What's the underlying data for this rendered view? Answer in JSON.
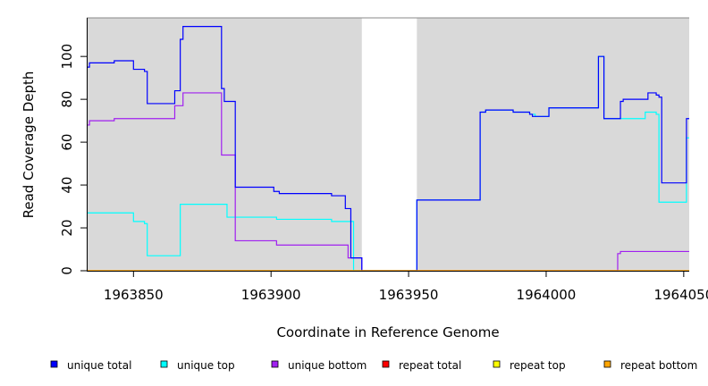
{
  "chart_data": {
    "type": "line",
    "title": "",
    "xlabel": "Coordinate in Reference Genome",
    "ylabel": "Read Coverage Depth",
    "xlim": [
      1963833,
      1964052
    ],
    "ylim": [
      0,
      118
    ],
    "x_ticks": [
      1963850,
      1963900,
      1963950,
      1964000,
      1964050
    ],
    "x_tick_labels": [
      "1963850",
      "1963900",
      "1963950",
      "1964000",
      "1964050"
    ],
    "y_ticks": [
      0,
      20,
      40,
      60,
      80,
      100
    ],
    "y_tick_labels": [
      "0",
      "20",
      "40",
      "60",
      "80",
      "100"
    ],
    "background_color": "#d9d9d9",
    "gap_regions": [
      [
        1963933,
        1963953
      ]
    ],
    "legend_position": "bottom",
    "series": [
      {
        "name": "unique top",
        "color": "#00ffff",
        "step_x": [
          1963833,
          1963850,
          1963854,
          1963855,
          1963866,
          1963867,
          1963882,
          1963884,
          1963902,
          1963922,
          1963929,
          1963930,
          1963933,
          1963953,
          1963976,
          1963978,
          1963988,
          1963994,
          1963996,
          1964001,
          1964019,
          1964020,
          1964021,
          1964027,
          1964036,
          1964038,
          1964040,
          1964041,
          1964050,
          1964051,
          1964052
        ],
        "step_y": [
          27,
          23,
          22,
          7,
          7,
          31,
          31,
          25,
          24,
          23,
          23,
          0,
          0,
          33,
          74,
          75,
          74,
          73,
          72,
          76,
          100,
          100,
          71,
          71,
          74,
          74,
          73,
          32,
          32,
          62,
          62
        ]
      },
      {
        "name": "unique bottom",
        "color": "#a020f0",
        "step_x": [
          1963833,
          1963834,
          1963843,
          1963865,
          1963868,
          1963882,
          1963887,
          1963902,
          1963928,
          1963930,
          1963933,
          1963953,
          1964026,
          1964027,
          1964052
        ],
        "step_y": [
          68,
          70,
          71,
          77,
          83,
          54,
          14,
          12,
          6,
          6,
          0,
          0,
          8,
          9,
          9
        ]
      },
      {
        "name": "unique total",
        "color": "#0000ff",
        "step_x": [
          1963833,
          1963834,
          1963843,
          1963850,
          1963854,
          1963855,
          1963865,
          1963867,
          1963868,
          1963882,
          1963883,
          1963887,
          1963901,
          1963903,
          1963922,
          1963927,
          1963929,
          1963933,
          1963953,
          1963976,
          1963978,
          1963988,
          1963994,
          1963995,
          1964001,
          1964019,
          1964020,
          1964021,
          1964027,
          1964028,
          1964037,
          1964040,
          1964041,
          1964042,
          1964051,
          1964052
        ],
        "step_y": [
          95,
          97,
          98,
          94,
          93,
          78,
          84,
          108,
          114,
          85,
          79,
          39,
          37,
          36,
          35,
          29,
          6,
          0,
          33,
          74,
          75,
          74,
          73,
          72,
          76,
          100,
          100,
          71,
          79,
          80,
          83,
          82,
          81,
          41,
          71,
          71
        ]
      },
      {
        "name": "repeat total",
        "color": "#ff0000",
        "step_x": [
          1963833,
          1964052
        ],
        "step_y": [
          0,
          0
        ]
      },
      {
        "name": "repeat top",
        "color": "#ffff00",
        "step_x": [
          1963833,
          1964052
        ],
        "step_y": [
          0,
          0
        ]
      },
      {
        "name": "repeat bottom",
        "color": "#ffa500",
        "step_x": [
          1963833,
          1964052
        ],
        "step_y": [
          0,
          0
        ]
      }
    ],
    "legend": [
      {
        "label": "unique total",
        "color": "#0000ff"
      },
      {
        "label": "unique top",
        "color": "#00ffff"
      },
      {
        "label": "unique bottom",
        "color": "#a020f0"
      },
      {
        "label": "repeat total",
        "color": "#ff0000"
      },
      {
        "label": "repeat top",
        "color": "#ffff00"
      },
      {
        "label": "repeat bottom",
        "color": "#ffa500"
      }
    ]
  }
}
